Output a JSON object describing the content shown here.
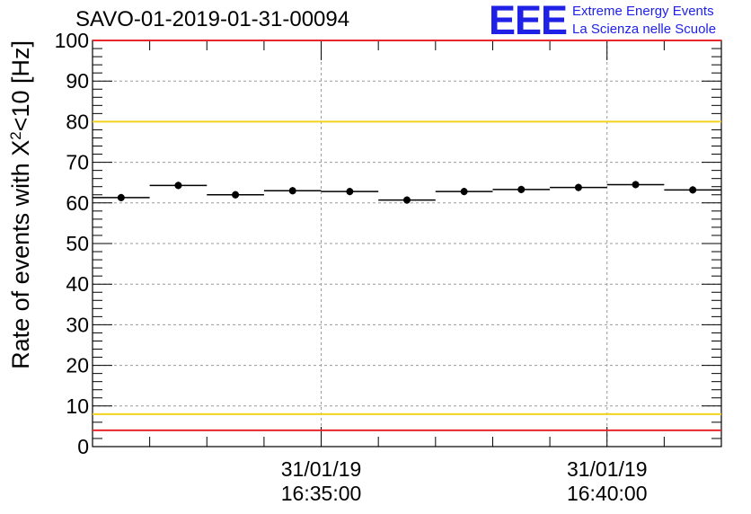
{
  "header": {
    "title": "SAVO-01-2019-01-31-00094",
    "logo_text": "EEE",
    "logo_line1": "Extreme Energy Events",
    "logo_line2": "La Scienza nelle Scuole"
  },
  "colors": {
    "red_line": "#e8262b",
    "yellow_line": "#f2d21d",
    "grid": "#9a9a9a",
    "marker": "#000000",
    "brand": "#1f22e6"
  },
  "chart_data": {
    "type": "scatter",
    "title": "SAVO-01-2019-01-31-00094",
    "xlabel_ticks": [
      {
        "date": "31/01/19",
        "time": "16:35:00",
        "minutes": 0
      },
      {
        "date": "31/01/19",
        "time": "16:40:00",
        "minutes": 5
      }
    ],
    "x_range_minutes": [
      -4.0,
      7.0
    ],
    "ylabel": "Rate of events with X²<10 [Hz]",
    "ylabel_parts": {
      "main": "Rate of events with X",
      "sup": "2",
      "tail": "<10 [Hz]"
    },
    "ylim": [
      0,
      100
    ],
    "yticks": [
      0,
      10,
      20,
      30,
      40,
      50,
      60,
      70,
      80,
      90,
      100
    ],
    "ytick_labels": [
      "0",
      "10",
      "20",
      "30",
      "40",
      "50",
      "60",
      "70",
      "80",
      "90",
      "100"
    ],
    "grid": true,
    "bin_width_minutes": 1.0,
    "series": [
      {
        "name": "rate",
        "x_minutes": [
          -3.5,
          -2.5,
          -1.5,
          -0.5,
          0.5,
          1.5,
          2.5,
          3.5,
          4.5,
          5.5,
          6.5
        ],
        "values": [
          61.3,
          64.3,
          62.0,
          63.0,
          62.8,
          60.7,
          62.8,
          63.3,
          63.8,
          64.5,
          63.2
        ],
        "errors": [
          0.9,
          0.9,
          0.9,
          0.9,
          0.9,
          0.9,
          0.9,
          0.9,
          0.9,
          0.9,
          0.9
        ]
      }
    ],
    "reference_lines": [
      {
        "value": 100,
        "color": "#e8262b"
      },
      {
        "value": 80,
        "color": "#f2d21d"
      },
      {
        "value": 8,
        "color": "#f2d21d"
      },
      {
        "value": 4,
        "color": "#e8262b"
      }
    ]
  }
}
